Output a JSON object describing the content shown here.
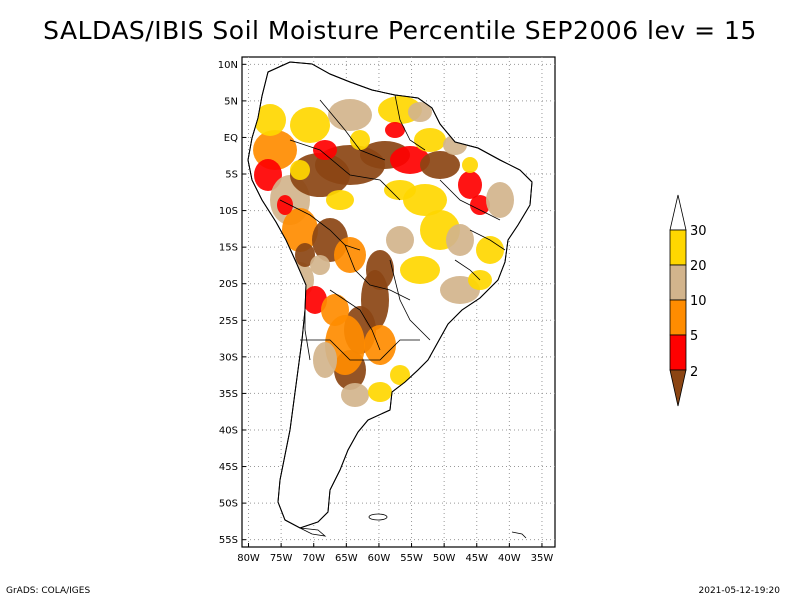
{
  "title": "SALDAS/IBIS Soil Moisture Percentile SEP2006 lev = 15",
  "footer": {
    "left": "GrADS: COLA/IGES",
    "right": "2021-05-12-19:20"
  },
  "map": {
    "lat_ticks": [
      "10N",
      "5N",
      "EQ",
      "5S",
      "10S",
      "15S",
      "20S",
      "25S",
      "30S",
      "35S",
      "40S",
      "45S",
      "50S",
      "55S"
    ],
    "lon_ticks": [
      "80W",
      "75W",
      "70W",
      "65W",
      "60W",
      "55W",
      "50W",
      "45W",
      "40W",
      "35W"
    ],
    "lat_range": [
      -56,
      11
    ],
    "lon_range": [
      -81,
      -33
    ],
    "grid": "dotted"
  },
  "colorbar": {
    "labels": [
      "2",
      "5",
      "10",
      "20",
      "30"
    ],
    "colors": {
      "below_2": "#8b4513",
      "2_5": "#ff0000",
      "5_10": "#ff8c00",
      "10_20": "#d2b48c",
      "20_30": "#ffd700",
      "above_30": "#ffffff"
    }
  }
}
